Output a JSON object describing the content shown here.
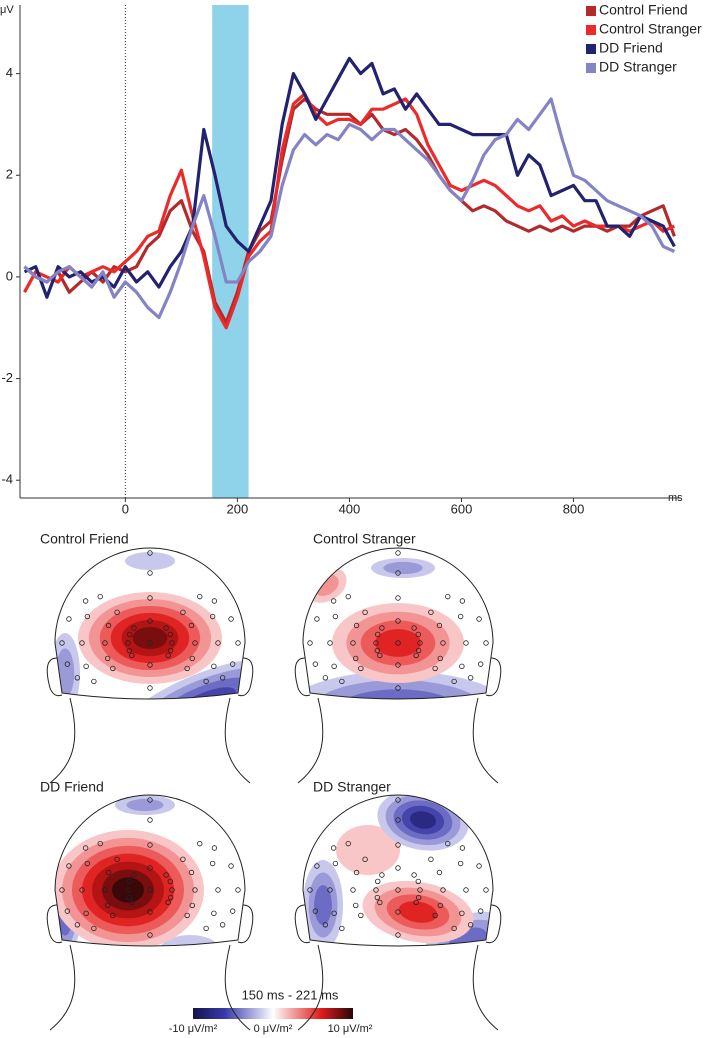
{
  "chart_data": {
    "type": "line",
    "y_label": "μV",
    "x_label": "ms",
    "xlim": [
      -188,
      990
    ],
    "ylim": [
      -4.35,
      5.35
    ],
    "xticks": [
      0,
      200,
      400,
      600,
      800
    ],
    "yticks": [
      -4,
      -2,
      0,
      2,
      4
    ],
    "vline": 0,
    "highlight": [
      155,
      220
    ],
    "highlight_color": "#8fd3ea",
    "x": [
      -180,
      -160,
      -140,
      -120,
      -100,
      -80,
      -60,
      -40,
      -20,
      0,
      20,
      40,
      60,
      80,
      100,
      120,
      140,
      160,
      180,
      200,
      220,
      240,
      260,
      280,
      300,
      320,
      340,
      360,
      380,
      400,
      420,
      440,
      460,
      480,
      500,
      520,
      540,
      560,
      580,
      600,
      620,
      640,
      660,
      680,
      700,
      720,
      740,
      760,
      780,
      800,
      820,
      840,
      860,
      880,
      900,
      920,
      940,
      960,
      980
    ],
    "series": [
      {
        "name": "Control Friend",
        "color": "#b22a2a",
        "values": [
          0.2,
          0.0,
          -0.1,
          0.1,
          -0.3,
          -0.1,
          0.1,
          -0.1,
          0.2,
          0.1,
          0.2,
          0.6,
          0.8,
          1.3,
          1.5,
          0.9,
          0.5,
          -0.5,
          -0.9,
          -0.3,
          0.5,
          0.9,
          1.1,
          2.3,
          3.3,
          3.5,
          3.3,
          3.2,
          3.2,
          3.2,
          3.0,
          3.2,
          2.9,
          2.8,
          2.9,
          2.7,
          2.4,
          2.0,
          1.7,
          1.5,
          1.3,
          1.4,
          1.3,
          1.1,
          1.0,
          0.9,
          1.0,
          0.9,
          1.0,
          0.9,
          1.0,
          1.0,
          0.9,
          1.0,
          1.0,
          1.2,
          1.3,
          1.4,
          0.8
        ]
      },
      {
        "name": "Control Stranger",
        "color": "#ec2a2a",
        "values": [
          -0.3,
          0.1,
          0.0,
          -0.1,
          0.2,
          0.0,
          0.1,
          0.2,
          0.1,
          0.3,
          0.5,
          0.8,
          0.9,
          1.6,
          2.1,
          1.2,
          0.4,
          -0.6,
          -1.0,
          -0.4,
          0.4,
          0.7,
          0.9,
          2.5,
          3.4,
          3.6,
          3.2,
          3.0,
          3.1,
          3.1,
          3.0,
          3.3,
          3.3,
          3.4,
          3.5,
          3.2,
          2.6,
          2.2,
          1.8,
          1.7,
          1.8,
          1.9,
          1.8,
          1.6,
          1.4,
          1.3,
          1.4,
          1.1,
          1.2,
          1.0,
          1.1,
          1.0,
          1.0,
          1.0,
          0.9,
          1.0,
          1.1,
          0.9,
          1.0
        ]
      },
      {
        "name": "DD Friend",
        "color": "#22226e",
        "values": [
          0.1,
          0.2,
          -0.4,
          0.2,
          0.0,
          0.1,
          -0.1,
          0.0,
          -0.2,
          0.2,
          -0.1,
          0.1,
          -0.2,
          0.2,
          0.5,
          1.0,
          2.9,
          2.0,
          1.0,
          0.7,
          0.5,
          1.0,
          1.5,
          3.0,
          4.0,
          3.6,
          3.1,
          3.5,
          3.9,
          4.3,
          4.0,
          4.2,
          3.6,
          3.7,
          3.3,
          3.6,
          3.3,
          3.0,
          3.0,
          2.9,
          2.8,
          2.8,
          2.8,
          2.8,
          2.0,
          2.4,
          2.2,
          1.6,
          1.7,
          1.8,
          1.5,
          1.5,
          1.0,
          1.0,
          0.8,
          1.2,
          1.1,
          1.0,
          0.6
        ]
      },
      {
        "name": "DD Stranger",
        "color": "#8484c4",
        "values": [
          0.2,
          0.0,
          -0.1,
          0.1,
          0.2,
          0.0,
          -0.2,
          0.1,
          -0.4,
          -0.1,
          -0.3,
          -0.6,
          -0.8,
          -0.3,
          0.3,
          1.0,
          1.6,
          0.8,
          -0.1,
          -0.1,
          0.3,
          0.5,
          0.8,
          1.8,
          2.5,
          2.8,
          2.6,
          2.8,
          2.7,
          3.0,
          2.9,
          2.7,
          2.9,
          2.9,
          2.7,
          2.5,
          2.3,
          2.0,
          1.7,
          1.5,
          1.9,
          2.4,
          2.7,
          2.8,
          3.1,
          2.9,
          3.2,
          3.5,
          2.7,
          2.0,
          1.9,
          1.7,
          1.5,
          1.4,
          1.3,
          1.2,
          1.0,
          0.6,
          0.5
        ]
      }
    ]
  },
  "topomaps": [
    {
      "title": "Control Friend"
    },
    {
      "title": "Control Stranger"
    },
    {
      "title": "DD Friend"
    },
    {
      "title": "DD Stranger"
    }
  ],
  "time_window": "150 ms - 221 ms",
  "colorbar": {
    "labels": [
      "-10 μV/m²",
      "0 μV/m²",
      "10 μV/m²"
    ]
  }
}
